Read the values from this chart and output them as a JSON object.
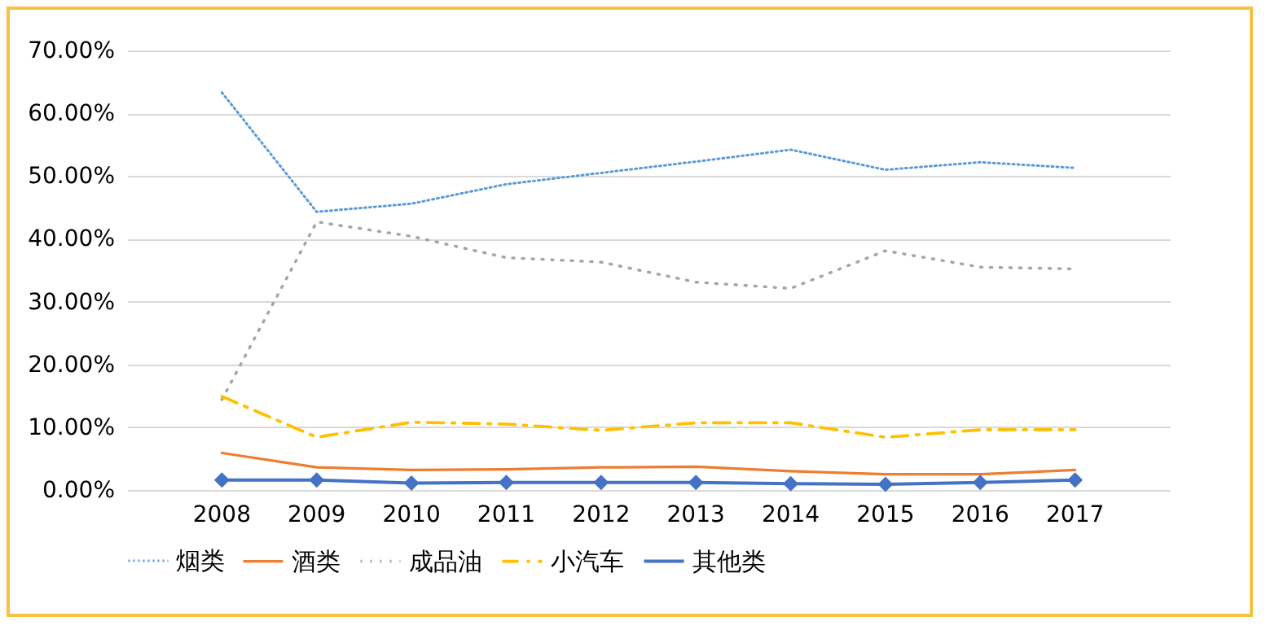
{
  "chart_data": {
    "type": "line",
    "categories": [
      "2008",
      "2009",
      "2010",
      "2011",
      "2012",
      "2013",
      "2014",
      "2015",
      "2016",
      "2017"
    ],
    "series": [
      {
        "name": "烟类",
        "color": "#5b9bd5",
        "line_style": "dotted",
        "values": [
          63.3,
          44.3,
          45.6,
          48.7,
          50.5,
          52.3,
          54.2,
          51.0,
          52.2,
          51.3
        ]
      },
      {
        "name": "酒类",
        "color": "#ed7d31",
        "line_style": "solid",
        "values": [
          5.9,
          3.6,
          3.2,
          3.3,
          3.6,
          3.7,
          3.0,
          2.5,
          2.5,
          3.2
        ]
      },
      {
        "name": "成品油",
        "color": "#a5a5a5",
        "line_style": "dotted",
        "values": [
          14.4,
          42.7,
          40.4,
          37.0,
          36.3,
          33.1,
          32.1,
          38.1,
          35.5,
          35.2
        ]
      },
      {
        "name": "小汽车",
        "color": "#ffc000",
        "line_style": "dashed",
        "values": [
          14.9,
          8.4,
          10.8,
          10.5,
          9.5,
          10.7,
          10.7,
          8.4,
          9.6,
          9.6
        ]
      },
      {
        "name": "其他类",
        "color": "#4472c4",
        "line_style": "solid",
        "marker": "diamond",
        "values": [
          1.6,
          1.6,
          1.1,
          1.2,
          1.2,
          1.2,
          1.0,
          0.9,
          1.2,
          1.6
        ]
      }
    ],
    "ylim": [
      0,
      70
    ],
    "yticks": [
      {
        "value": 0,
        "label": "0.00%"
      },
      {
        "value": 10,
        "label": "10.00%"
      },
      {
        "value": 20,
        "label": "20.00%"
      },
      {
        "value": 30,
        "label": "30.00%"
      },
      {
        "value": 40,
        "label": "40.00%"
      },
      {
        "value": 50,
        "label": "50.00%"
      },
      {
        "value": 60,
        "label": "60.00%"
      },
      {
        "value": 70,
        "label": "70.00%"
      }
    ],
    "grid": "y",
    "legend": "bottom"
  }
}
